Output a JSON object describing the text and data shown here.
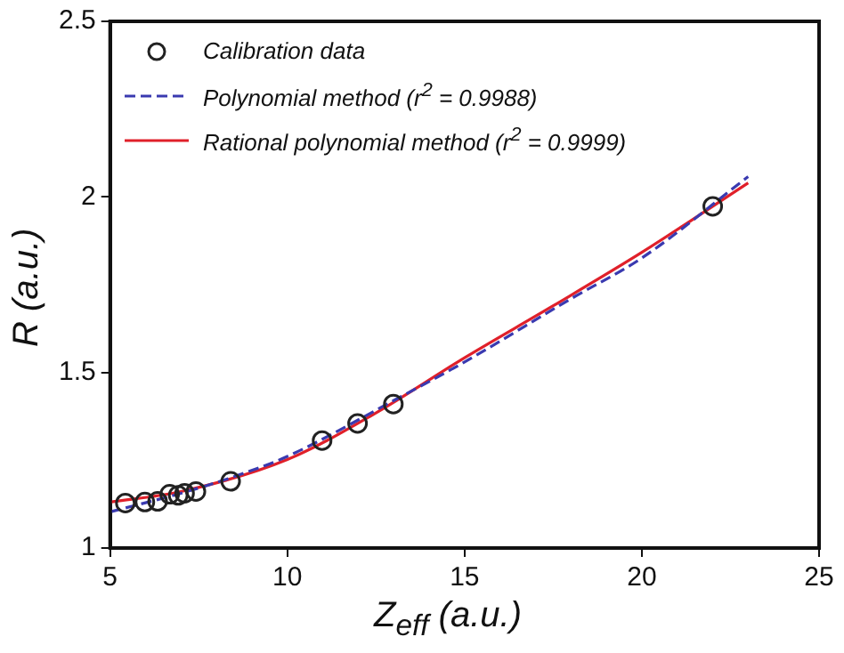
{
  "chart_data": {
    "type": "scatter",
    "xlabel": "Z$_{eff}$ (a.u.)",
    "ylabel": "R (a.u.)",
    "xlim": [
      5,
      25
    ],
    "xticks": [
      5,
      10,
      15,
      20,
      25
    ],
    "ylim": [
      1,
      2.5
    ],
    "yticks": [
      1,
      1.5,
      2,
      2.5
    ],
    "grid": false,
    "legend": "top left",
    "series": [
      {
        "name": "Calibration data",
        "marker": "circle",
        "color": "#222222",
        "x": [
          5.43,
          5.98,
          6.34,
          6.68,
          6.92,
          7.1,
          7.42,
          8.4,
          10.98,
          11.98,
          12.99,
          22.0
        ],
        "values": [
          1.128,
          1.131,
          1.133,
          1.153,
          1.15,
          1.156,
          1.161,
          1.19,
          1.306,
          1.355,
          1.41,
          1.973
        ]
      },
      {
        "name": "Polynomial method (r$^{2}$ = 0.9988)",
        "type": "line",
        "marker": "none",
        "line_style": "dashed",
        "color": "#3a3ab0",
        "x": [
          5,
          7,
          8.4,
          10,
          13,
          15,
          18,
          20,
          23
        ],
        "values": [
          1.103,
          1.156,
          1.2,
          1.261,
          1.42,
          1.53,
          1.71,
          1.826,
          2.058
        ]
      },
      {
        "name": "Rational polynomial method (r$^{2}$ = 0.9999)",
        "type": "line",
        "marker": "none",
        "line_style": "solid",
        "color": "#e0202a",
        "x": [
          5,
          7,
          10,
          12.5,
          15,
          17.5,
          20,
          23
        ],
        "values": [
          1.131,
          1.161,
          1.252,
          1.385,
          1.542,
          1.69,
          1.842,
          2.04
        ]
      }
    ]
  }
}
